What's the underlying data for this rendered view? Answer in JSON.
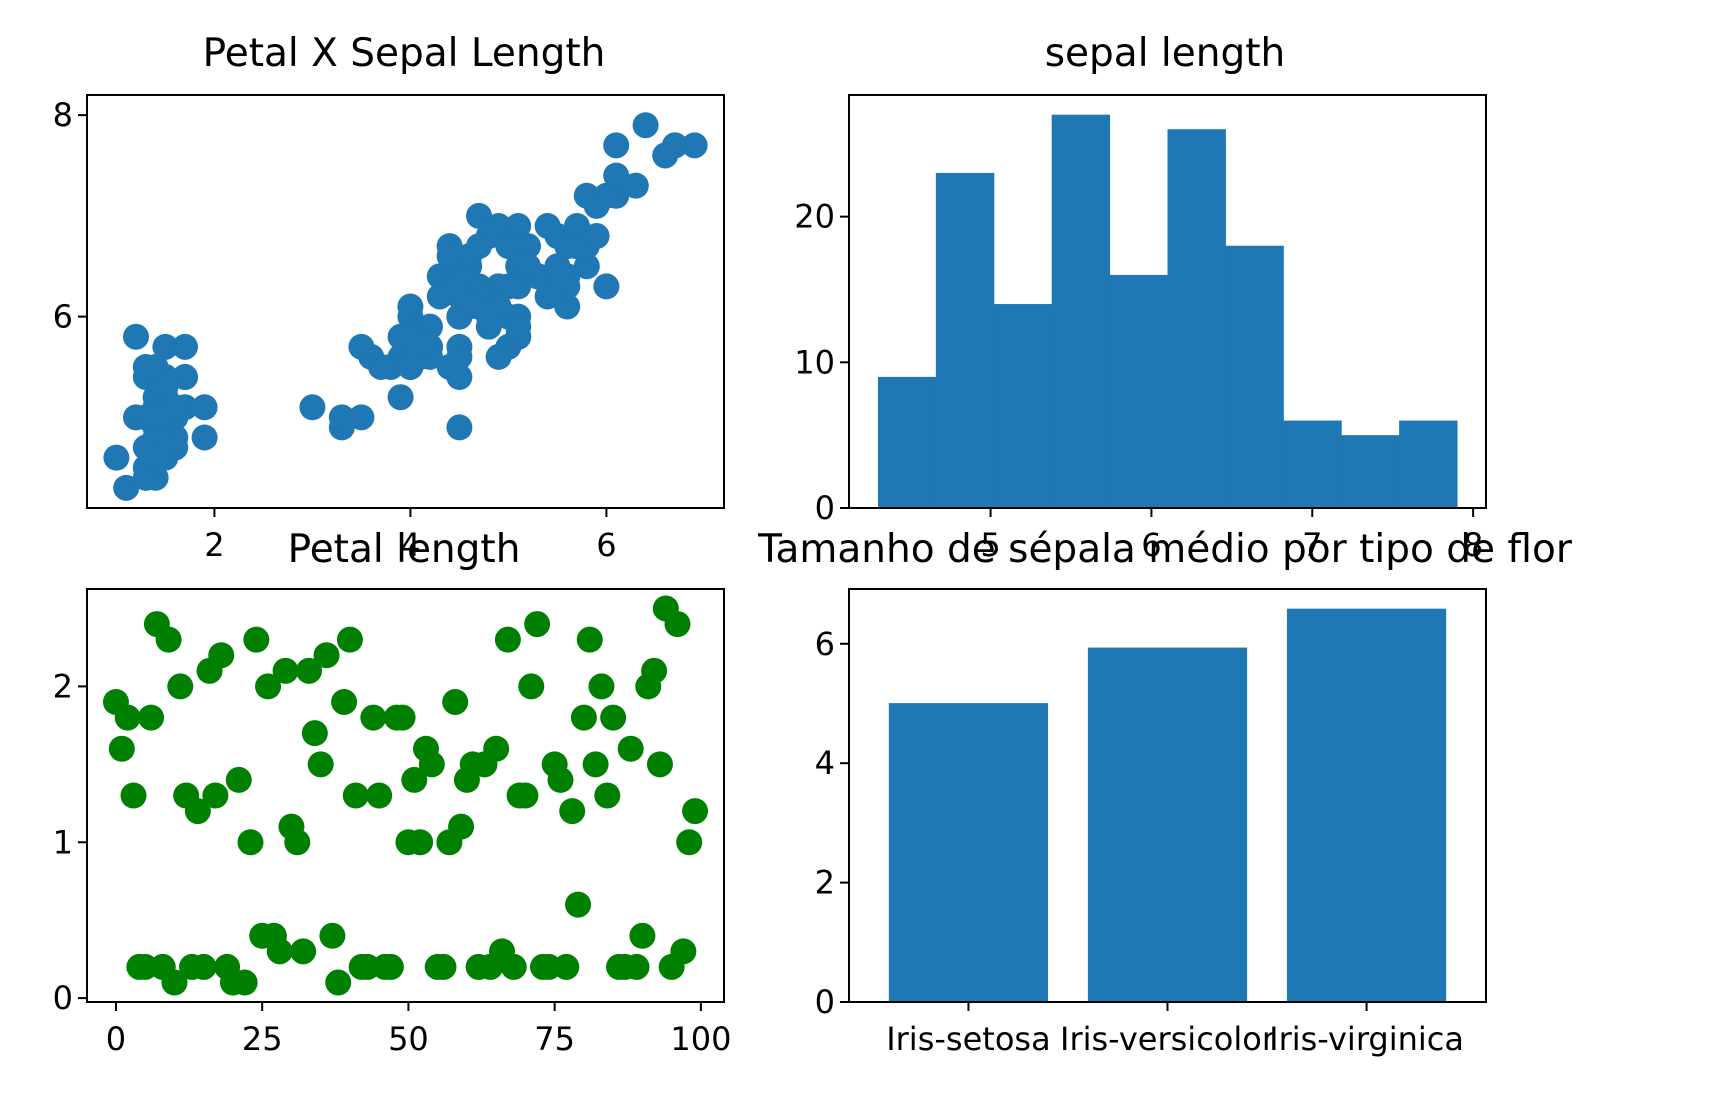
{
  "colors": {
    "blue": "#1f77b4",
    "green": "#008000",
    "axis": "#000000",
    "background": "#ffffff"
  },
  "chart_data": [
    {
      "id": "petal-x-sepal",
      "type": "scatter",
      "title": "Petal X Sepal Length",
      "xlabel": "",
      "ylabel": "",
      "xlim": [
        0.7,
        7.2
      ],
      "ylim": [
        4.1,
        8.2
      ],
      "xticks": [
        2,
        4,
        6
      ],
      "yticks": [
        6,
        8
      ],
      "color": "#1f77b4",
      "points": [
        [
          1.4,
          5.1
        ],
        [
          1.4,
          4.9
        ],
        [
          1.3,
          4.7
        ],
        [
          1.5,
          4.6
        ],
        [
          1.4,
          5.0
        ],
        [
          1.7,
          5.4
        ],
        [
          1.4,
          4.6
        ],
        [
          1.5,
          5.0
        ],
        [
          1.4,
          4.4
        ],
        [
          1.5,
          4.9
        ],
        [
          1.5,
          5.4
        ],
        [
          1.6,
          4.8
        ],
        [
          1.4,
          4.8
        ],
        [
          1.1,
          4.3
        ],
        [
          1.2,
          5.8
        ],
        [
          1.5,
          5.7
        ],
        [
          1.3,
          5.4
        ],
        [
          1.4,
          5.1
        ],
        [
          1.7,
          5.7
        ],
        [
          1.5,
          5.1
        ],
        [
          1.7,
          5.4
        ],
        [
          1.5,
          5.1
        ],
        [
          1.0,
          4.6
        ],
        [
          1.7,
          5.1
        ],
        [
          1.9,
          4.8
        ],
        [
          1.6,
          5.0
        ],
        [
          1.6,
          5.0
        ],
        [
          1.5,
          5.2
        ],
        [
          1.4,
          5.2
        ],
        [
          1.6,
          4.7
        ],
        [
          1.6,
          4.8
        ],
        [
          1.5,
          5.4
        ],
        [
          1.5,
          5.2
        ],
        [
          1.4,
          5.5
        ],
        [
          1.5,
          4.9
        ],
        [
          1.2,
          5.0
        ],
        [
          1.3,
          5.5
        ],
        [
          1.4,
          4.9
        ],
        [
          1.3,
          4.4
        ],
        [
          1.5,
          5.1
        ],
        [
          1.3,
          5.0
        ],
        [
          1.3,
          4.5
        ],
        [
          1.3,
          4.4
        ],
        [
          1.6,
          5.0
        ],
        [
          1.9,
          5.1
        ],
        [
          1.4,
          4.8
        ],
        [
          1.6,
          5.1
        ],
        [
          1.4,
          4.6
        ],
        [
          1.5,
          5.3
        ],
        [
          1.4,
          5.0
        ],
        [
          4.7,
          7.0
        ],
        [
          4.5,
          6.4
        ],
        [
          4.9,
          6.9
        ],
        [
          4.0,
          5.5
        ],
        [
          4.6,
          6.5
        ],
        [
          4.5,
          5.7
        ],
        [
          4.7,
          6.3
        ],
        [
          3.3,
          4.9
        ],
        [
          4.6,
          6.6
        ],
        [
          3.9,
          5.2
        ],
        [
          3.5,
          5.0
        ],
        [
          4.2,
          5.9
        ],
        [
          4.0,
          6.0
        ],
        [
          4.7,
          6.1
        ],
        [
          3.6,
          5.6
        ],
        [
          4.4,
          6.7
        ],
        [
          4.5,
          5.6
        ],
        [
          4.1,
          5.8
        ],
        [
          4.5,
          6.2
        ],
        [
          3.9,
          5.6
        ],
        [
          4.8,
          5.9
        ],
        [
          4.0,
          6.1
        ],
        [
          4.9,
          6.3
        ],
        [
          4.7,
          6.1
        ],
        [
          4.3,
          6.4
        ],
        [
          4.4,
          6.6
        ],
        [
          4.8,
          6.8
        ],
        [
          5.0,
          6.7
        ],
        [
          4.5,
          6.0
        ],
        [
          3.5,
          5.7
        ],
        [
          3.8,
          5.5
        ],
        [
          3.7,
          5.5
        ],
        [
          3.9,
          5.8
        ],
        [
          5.1,
          6.0
        ],
        [
          4.5,
          5.4
        ],
        [
          4.5,
          6.0
        ],
        [
          4.7,
          6.7
        ],
        [
          4.4,
          6.3
        ],
        [
          4.1,
          5.6
        ],
        [
          4.0,
          5.5
        ],
        [
          4.4,
          5.5
        ],
        [
          4.6,
          6.1
        ],
        [
          4.0,
          5.8
        ],
        [
          3.3,
          5.0
        ],
        [
          4.2,
          5.6
        ],
        [
          4.2,
          5.7
        ],
        [
          4.2,
          5.7
        ],
        [
          4.3,
          6.2
        ],
        [
          3.0,
          5.1
        ],
        [
          4.1,
          5.7
        ],
        [
          6.0,
          6.3
        ],
        [
          5.1,
          5.8
        ],
        [
          5.9,
          7.1
        ],
        [
          5.6,
          6.3
        ],
        [
          5.8,
          6.5
        ],
        [
          6.6,
          7.6
        ],
        [
          4.5,
          4.9
        ],
        [
          6.3,
          7.3
        ],
        [
          5.8,
          6.7
        ],
        [
          6.1,
          7.2
        ],
        [
          5.1,
          6.5
        ],
        [
          5.3,
          6.4
        ],
        [
          5.5,
          6.8
        ],
        [
          5.0,
          5.7
        ],
        [
          5.1,
          5.8
        ],
        [
          5.3,
          6.4
        ],
        [
          5.5,
          6.5
        ],
        [
          6.7,
          7.7
        ],
        [
          6.9,
          7.7
        ],
        [
          5.0,
          6.0
        ],
        [
          5.7,
          6.9
        ],
        [
          4.9,
          5.6
        ],
        [
          6.7,
          7.7
        ],
        [
          4.9,
          6.3
        ],
        [
          5.7,
          6.7
        ],
        [
          6.0,
          7.2
        ],
        [
          4.8,
          6.2
        ],
        [
          4.9,
          6.1
        ],
        [
          5.6,
          6.4
        ],
        [
          5.8,
          7.2
        ],
        [
          6.1,
          7.4
        ],
        [
          6.4,
          7.9
        ],
        [
          5.6,
          6.4
        ],
        [
          5.1,
          6.3
        ],
        [
          5.6,
          6.1
        ],
        [
          6.1,
          7.7
        ],
        [
          5.6,
          6.3
        ],
        [
          5.5,
          6.4
        ],
        [
          4.8,
          6.0
        ],
        [
          5.4,
          6.9
        ],
        [
          5.6,
          6.7
        ],
        [
          5.1,
          6.9
        ],
        [
          5.1,
          5.8
        ],
        [
          5.9,
          6.8
        ],
        [
          5.7,
          6.7
        ],
        [
          5.2,
          6.7
        ],
        [
          5.0,
          6.3
        ],
        [
          5.2,
          6.5
        ],
        [
          5.4,
          6.2
        ],
        [
          5.1,
          5.9
        ]
      ]
    },
    {
      "id": "sepal-length-hist",
      "type": "bar",
      "title": "sepal length",
      "xlabel": "",
      "ylabel": "",
      "bin_edges": [
        4.3,
        4.66,
        5.02,
        5.38,
        5.74,
        6.1,
        6.46,
        6.82,
        7.18,
        7.54,
        7.9
      ],
      "values": [
        9,
        23,
        14,
        27,
        16,
        26,
        18,
        6,
        5,
        6
      ],
      "xlim": [
        4.12,
        8.08
      ],
      "ylim": [
        0,
        28.35
      ],
      "xticks": [
        5,
        6,
        7,
        8
      ],
      "yticks": [
        0,
        10,
        20
      ],
      "color": "#1f77b4"
    },
    {
      "id": "petal-length-scatter",
      "type": "scatter",
      "title": "Petal length",
      "xlabel": "",
      "ylabel": "",
      "xlim": [
        -4.95,
        103.95
      ],
      "ylim": [
        -0.025,
        2.625
      ],
      "xticks": [
        0,
        25,
        50,
        75,
        100
      ],
      "yticks": [
        0,
        1,
        2
      ],
      "color": "#008000",
      "points": [
        [
          0,
          1.9
        ],
        [
          1,
          1.6
        ],
        [
          2,
          1.8
        ],
        [
          3,
          1.3
        ],
        [
          4,
          0.2
        ],
        [
          5,
          0.2
        ],
        [
          6,
          1.8
        ],
        [
          7,
          2.4
        ],
        [
          8,
          0.2
        ],
        [
          9,
          2.3
        ],
        [
          10,
          0.1
        ],
        [
          11,
          2.0
        ],
        [
          12,
          1.3
        ],
        [
          13,
          0.2
        ],
        [
          14,
          1.2
        ],
        [
          15,
          0.2
        ],
        [
          16,
          2.1
        ],
        [
          17,
          1.3
        ],
        [
          18,
          2.2
        ],
        [
          19,
          0.2
        ],
        [
          20,
          0.1
        ],
        [
          21,
          1.4
        ],
        [
          22,
          0.1
        ],
        [
          23,
          1.0
        ],
        [
          24,
          2.3
        ],
        [
          25,
          0.4
        ],
        [
          26,
          2.0
        ],
        [
          27,
          0.4
        ],
        [
          28,
          0.3
        ],
        [
          29,
          2.1
        ],
        [
          30,
          1.1
        ],
        [
          31,
          1.0
        ],
        [
          32,
          0.3
        ],
        [
          33,
          2.1
        ],
        [
          34,
          1.7
        ],
        [
          35,
          1.5
        ],
        [
          36,
          2.2
        ],
        [
          37,
          0.4
        ],
        [
          38,
          0.1
        ],
        [
          39,
          1.9
        ],
        [
          40,
          2.3
        ],
        [
          41,
          1.3
        ],
        [
          42,
          0.2
        ],
        [
          43,
          0.2
        ],
        [
          44,
          1.8
        ],
        [
          45,
          1.3
        ],
        [
          46,
          0.2
        ],
        [
          47,
          0.2
        ],
        [
          48,
          1.8
        ],
        [
          49,
          1.8
        ],
        [
          50,
          1.0
        ],
        [
          51,
          1.4
        ],
        [
          52,
          1.0
        ],
        [
          53,
          1.6
        ],
        [
          54,
          1.5
        ],
        [
          55,
          0.2
        ],
        [
          56,
          0.2
        ],
        [
          57,
          1.0
        ],
        [
          58,
          1.9
        ],
        [
          59,
          1.1
        ],
        [
          60,
          1.4
        ],
        [
          61,
          1.5
        ],
        [
          62,
          0.2
        ],
        [
          63,
          1.5
        ],
        [
          64,
          0.2
        ],
        [
          65,
          1.6
        ],
        [
          66,
          0.3
        ],
        [
          67,
          2.3
        ],
        [
          68,
          0.2
        ],
        [
          69,
          1.3
        ],
        [
          70,
          1.3
        ],
        [
          71,
          2.0
        ],
        [
          72,
          2.4
        ],
        [
          73,
          0.2
        ],
        [
          74,
          0.2
        ],
        [
          75,
          1.5
        ],
        [
          76,
          1.4
        ],
        [
          77,
          0.2
        ],
        [
          78,
          1.2
        ],
        [
          79,
          0.6
        ],
        [
          80,
          1.8
        ],
        [
          81,
          2.3
        ],
        [
          82,
          1.5
        ],
        [
          83,
          2.0
        ],
        [
          84,
          1.3
        ],
        [
          85,
          1.8
        ],
        [
          86,
          0.2
        ],
        [
          87,
          0.2
        ],
        [
          88,
          1.6
        ],
        [
          89,
          0.2
        ],
        [
          90,
          0.4
        ],
        [
          91,
          2.0
        ],
        [
          92,
          2.1
        ],
        [
          93,
          1.5
        ],
        [
          94,
          2.5
        ],
        [
          95,
          0.2
        ],
        [
          96,
          2.4
        ],
        [
          97,
          0.3
        ],
        [
          98,
          1.0
        ],
        [
          99,
          1.2
        ]
      ]
    },
    {
      "id": "mean-sepal-bar",
      "type": "bar",
      "title": "Tamanho de sépala médio por tipo de flor",
      "xlabel": "",
      "ylabel": "",
      "categories": [
        "Iris-setosa",
        "Iris-versicolor",
        "Iris-virginica"
      ],
      "values": [
        5.006,
        5.936,
        6.588
      ],
      "xlim": [
        -0.6,
        2.6
      ],
      "ylim": [
        0,
        6.9174
      ],
      "yticks": [
        0,
        2,
        4,
        6
      ],
      "color": "#1f77b4"
    }
  ]
}
